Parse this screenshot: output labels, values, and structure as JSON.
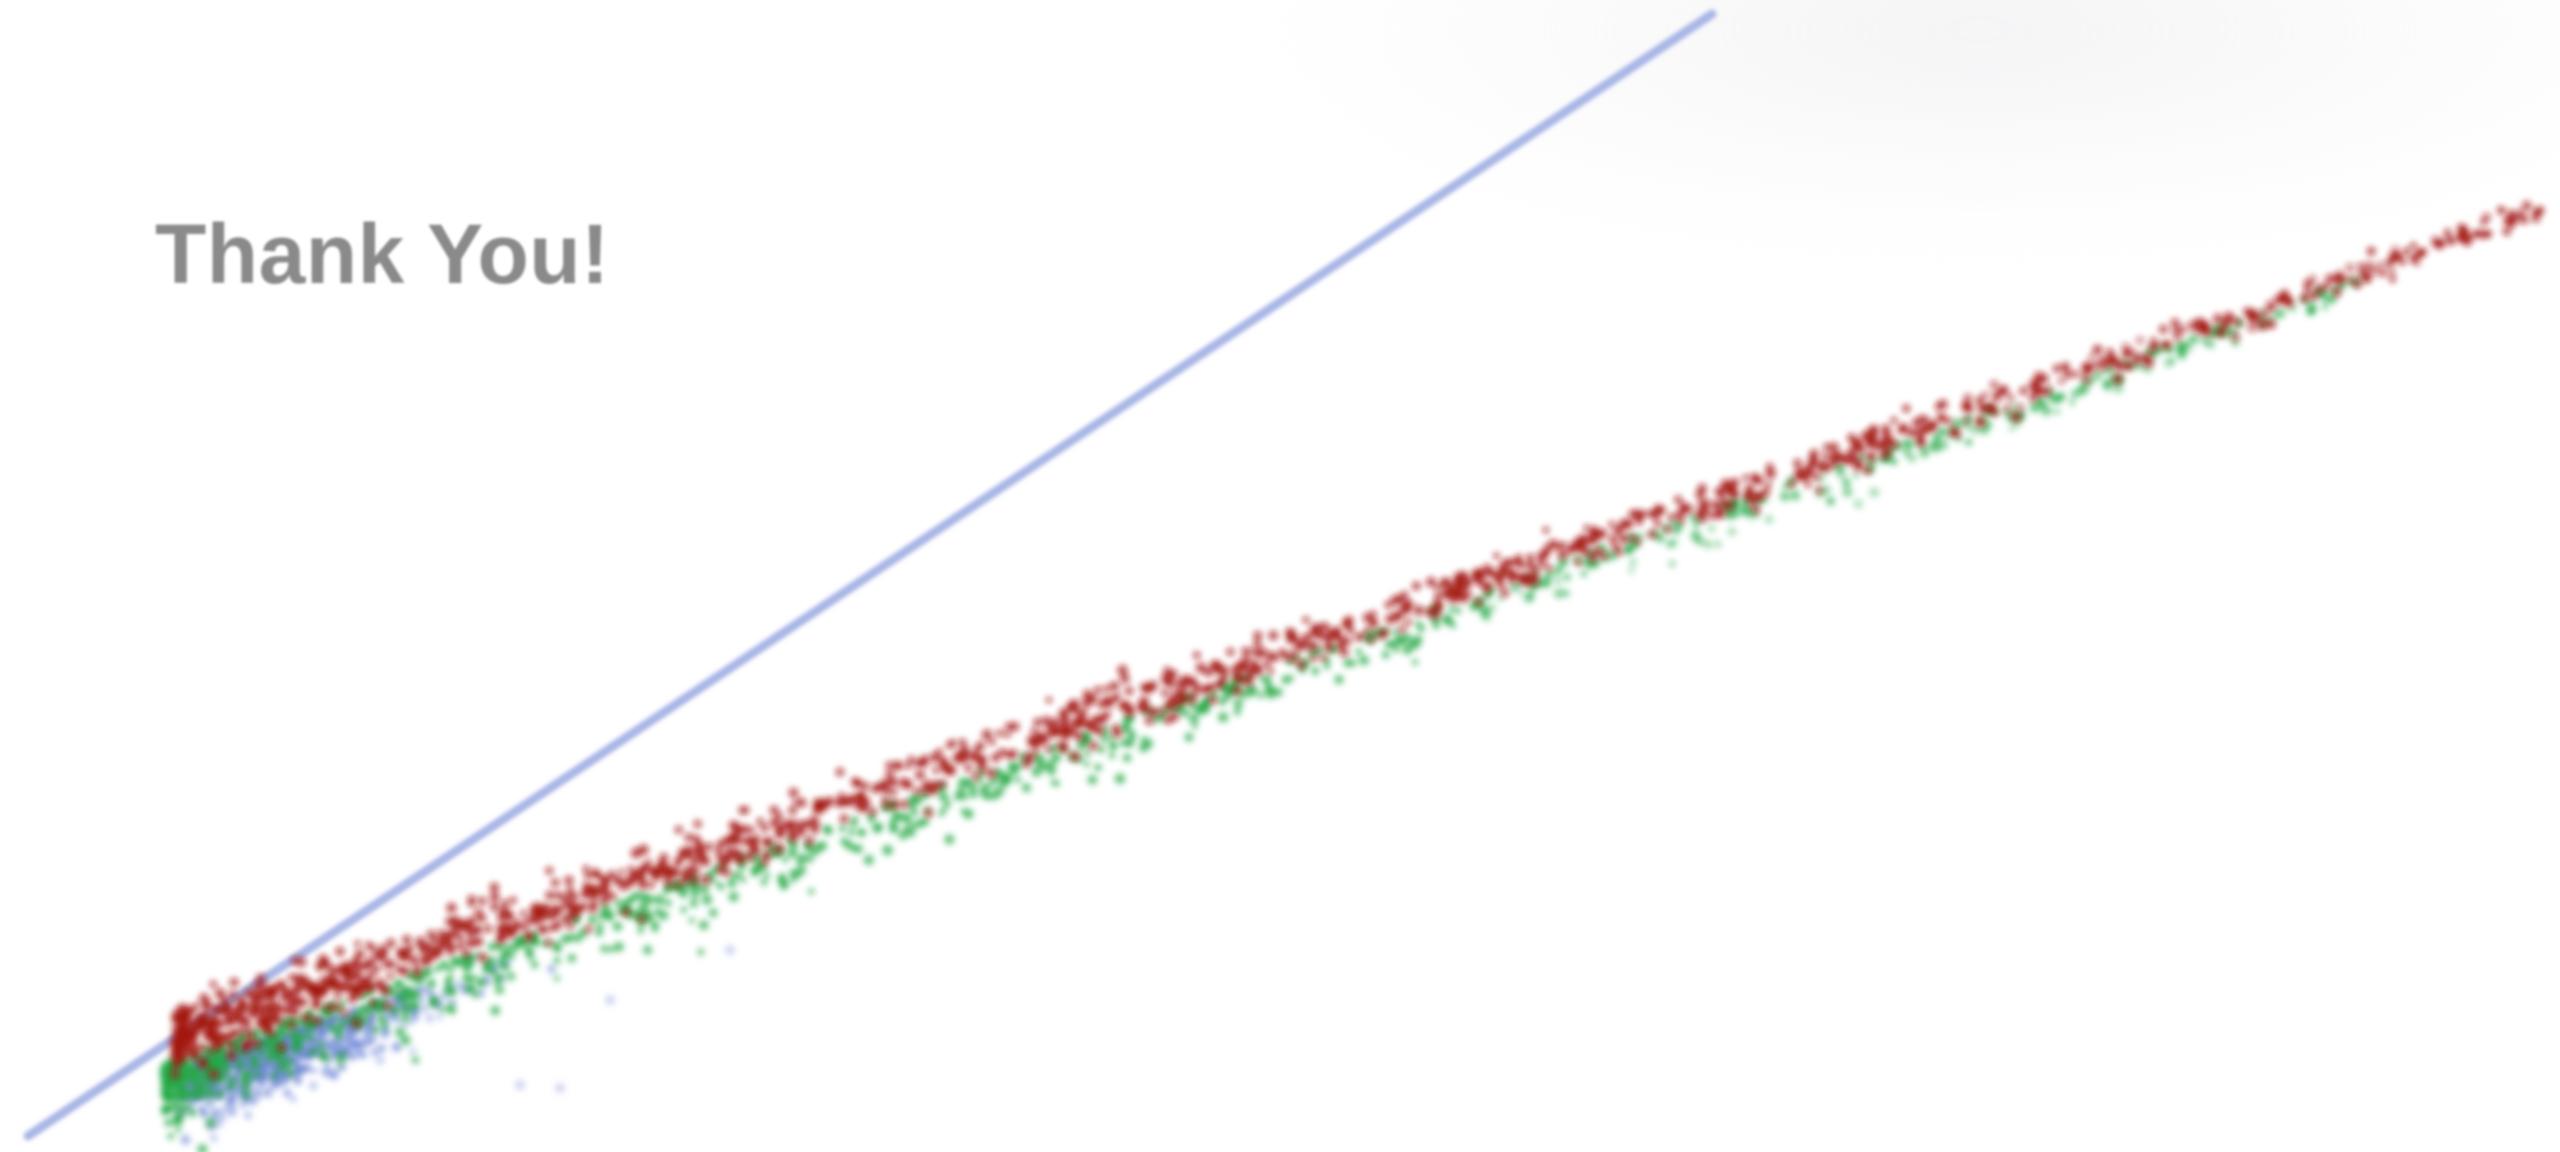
{
  "slide": {
    "title": "Thank You!"
  },
  "colors": {
    "title_text": "#8a8a8a",
    "reference_line": "#a9b6e6",
    "series_red": "#a3140f",
    "series_green": "#22a845",
    "series_blue": "#6f86d6",
    "background": "#ffffff"
  },
  "decoration": {
    "kind": "scatter-graphic",
    "series": [
      "red",
      "green",
      "blue"
    ],
    "reference_line": "diagonal"
  }
}
